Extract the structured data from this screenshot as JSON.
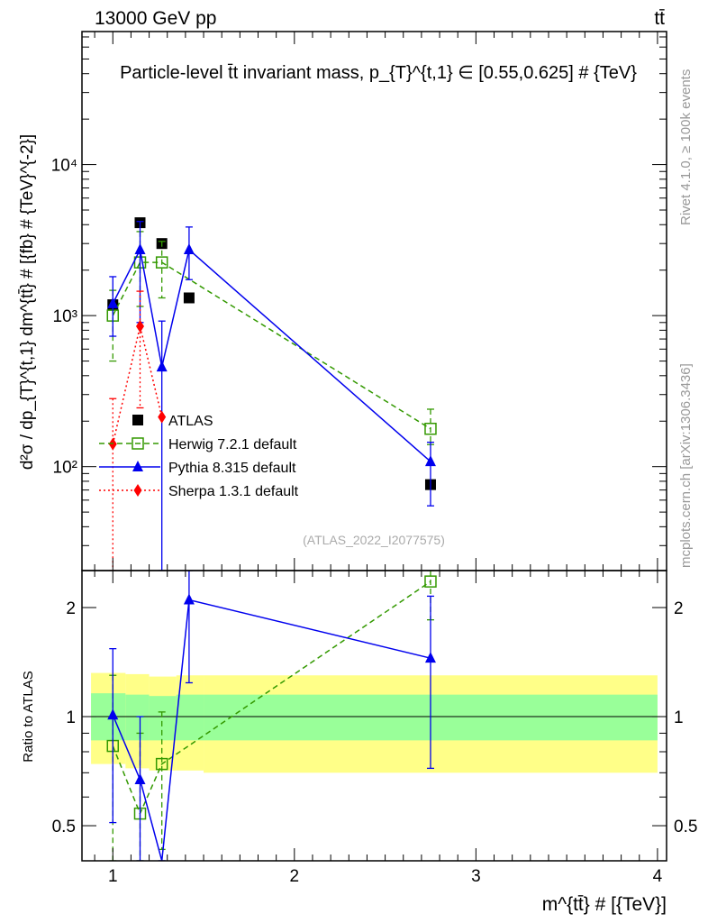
{
  "header": {
    "left": "13000 GeV pp",
    "right": "tt̄"
  },
  "side_text": {
    "top": "Rivet 4.1.0, ≥ 100k events",
    "bottom": "mcplots.cern.ch [arXiv:1306.3436]"
  },
  "watermark": "(ATLAS_2022_I2077575)",
  "chart_data": [
    {
      "type": "line",
      "title": "Particle-level t̄t invariant mass, p_{T}^{t,1} ∈ [0.55,0.625] # {TeV}",
      "ylabel": "d²σ / dp_{T}^{t,1} dm^{tt̄} # [{fb} # {TeV}^{-2}]",
      "xlabel": "m^{tt̄} # [{TeV}]",
      "yscale": "log",
      "xlim": [
        0.83,
        4.05
      ],
      "ylim": [
        20.5,
        76000
      ],
      "yticks": [
        {
          "v": 100,
          "label": "10²"
        },
        {
          "v": 1000,
          "label": "10³"
        },
        {
          "v": 10000,
          "label": "10⁴"
        }
      ],
      "legend_position": "center-left",
      "series": [
        {
          "name": "ATLAS",
          "color": "#000000",
          "marker": "square",
          "line": "none",
          "points": [
            {
              "x": 1.0,
              "y": 1180
            },
            {
              "x": 1.15,
              "y": 4120
            },
            {
              "x": 1.27,
              "y": 3000
            },
            {
              "x": 1.42,
              "y": 1310
            },
            {
              "x": 2.75,
              "y": 76
            }
          ]
        },
        {
          "name": "Herwig 7.2.1 default",
          "color": "#339900",
          "marker": "open-square",
          "line": "dashed",
          "points": [
            {
              "x": 1.0,
              "y": 1000,
              "lo": 500,
              "hi": 1470
            },
            {
              "x": 1.15,
              "y": 2250,
              "lo": 1150,
              "hi": 3600
            },
            {
              "x": 1.27,
              "y": 2250,
              "lo": 1310,
              "hi": 3100
            },
            {
              "x": 2.75,
              "y": 178,
              "lo": 140,
              "hi": 240
            }
          ]
        },
        {
          "name": "Pythia 8.315 default",
          "color": "#0000ee",
          "marker": "triangle",
          "line": "solid",
          "points": [
            {
              "x": 1.0,
              "y": 1200,
              "lo": 730,
              "hi": 1810
            },
            {
              "x": 1.15,
              "y": 2730,
              "lo": 900,
              "hi": 4200
            },
            {
              "x": 1.27,
              "y": 457,
              "lo": 1,
              "hi": 920
            },
            {
              "x": 1.42,
              "y": 2730,
              "lo": 1730,
              "hi": 3860
            },
            {
              "x": 2.75,
              "y": 108,
              "lo": 55,
              "hi": 145
            }
          ]
        },
        {
          "name": "Sherpa 1.3.1 default",
          "color": "#ff0000",
          "marker": "diamond",
          "line": "dotted",
          "points": [
            {
              "x": 1.0,
              "y": 141,
              "lo": 1,
              "hi": 282
            },
            {
              "x": 1.15,
              "y": 850,
              "lo": 245,
              "hi": 1450
            },
            {
              "x": 1.27,
              "y": 213
            }
          ]
        }
      ]
    },
    {
      "type": "line",
      "ylabel": "Ratio to ATLAS",
      "yscale": "log",
      "ylim": [
        0.4,
        2.53
      ],
      "yticks": [
        {
          "v": 0.5,
          "label": "0.5"
        },
        {
          "v": 1,
          "label": "1"
        },
        {
          "v": 2,
          "label": "2"
        }
      ],
      "xticks": [
        {
          "v": 1,
          "label": "1"
        },
        {
          "v": 2,
          "label": "2"
        },
        {
          "v": 3,
          "label": "3"
        },
        {
          "v": 4,
          "label": "4"
        }
      ],
      "bands": [
        {
          "x0": 0.88,
          "x1": 1.07,
          "y68": [
            0.86,
            1.16
          ],
          "y95": [
            0.74,
            1.32
          ]
        },
        {
          "x0": 1.07,
          "x1": 1.2,
          "y68": [
            0.86,
            1.15
          ],
          "y95": [
            0.72,
            1.31
          ]
        },
        {
          "x0": 1.2,
          "x1": 1.35,
          "y68": [
            0.86,
            1.14
          ],
          "y95": [
            0.71,
            1.29
          ]
        },
        {
          "x0": 1.35,
          "x1": 1.5,
          "y68": [
            0.86,
            1.15
          ],
          "y95": [
            0.71,
            1.3
          ]
        },
        {
          "x0": 1.5,
          "x1": 4.0,
          "y68": [
            0.86,
            1.15
          ],
          "y95": [
            0.7,
            1.3
          ]
        }
      ],
      "series": [
        {
          "name": "Herwig 7.2.1 default",
          "color": "#339900",
          "line": "dashed",
          "marker": "open-square",
          "points": [
            {
              "x": 1.0,
              "y": 0.83,
              "lo": 0.38,
              "hi": 1.3
            },
            {
              "x": 1.15,
              "y": 0.54,
              "lo": 0.3,
              "hi": 0.9
            },
            {
              "x": 1.27,
              "y": 0.74,
              "lo": 0.43,
              "hi": 1.03
            },
            {
              "x": 2.75,
              "y": 2.36,
              "lo": 1.85,
              "hi": 3.1
            }
          ]
        },
        {
          "name": "Pythia 8.315 default",
          "color": "#0000ee",
          "line": "solid",
          "marker": "triangle",
          "points": [
            {
              "x": 1.0,
              "y": 1.01,
              "lo": 0.51,
              "hi": 1.54
            },
            {
              "x": 1.15,
              "y": 0.67,
              "lo": 0.2,
              "hi": 1.0
            },
            {
              "x": 1.27,
              "y": 0.15,
              "lo": 0.01,
              "hi": 0.3
            },
            {
              "x": 1.42,
              "y": 2.1,
              "lo": 1.24,
              "hi": 3.0
            },
            {
              "x": 2.75,
              "y": 1.45,
              "lo": 0.72,
              "hi": 2.15
            }
          ]
        }
      ]
    }
  ]
}
